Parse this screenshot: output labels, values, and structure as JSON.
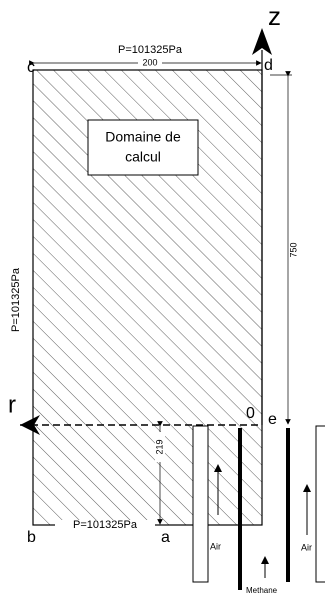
{
  "axes": {
    "z": "z",
    "r": "r",
    "origin": "0"
  },
  "points": {
    "a": "a",
    "b": "b",
    "c": "c",
    "d": "d",
    "e": "e"
  },
  "boundaries": {
    "top": "P=101325Pa",
    "left": "P=101325Pa",
    "bottom": "P=101325Pa"
  },
  "dimensions": {
    "width": "200",
    "height": "750",
    "inlet": "219"
  },
  "domain_label": [
    "Domaine de",
    "calcul"
  ],
  "inlets": {
    "air_left": "Air",
    "air_right": "Air",
    "methane": "Methane"
  }
}
